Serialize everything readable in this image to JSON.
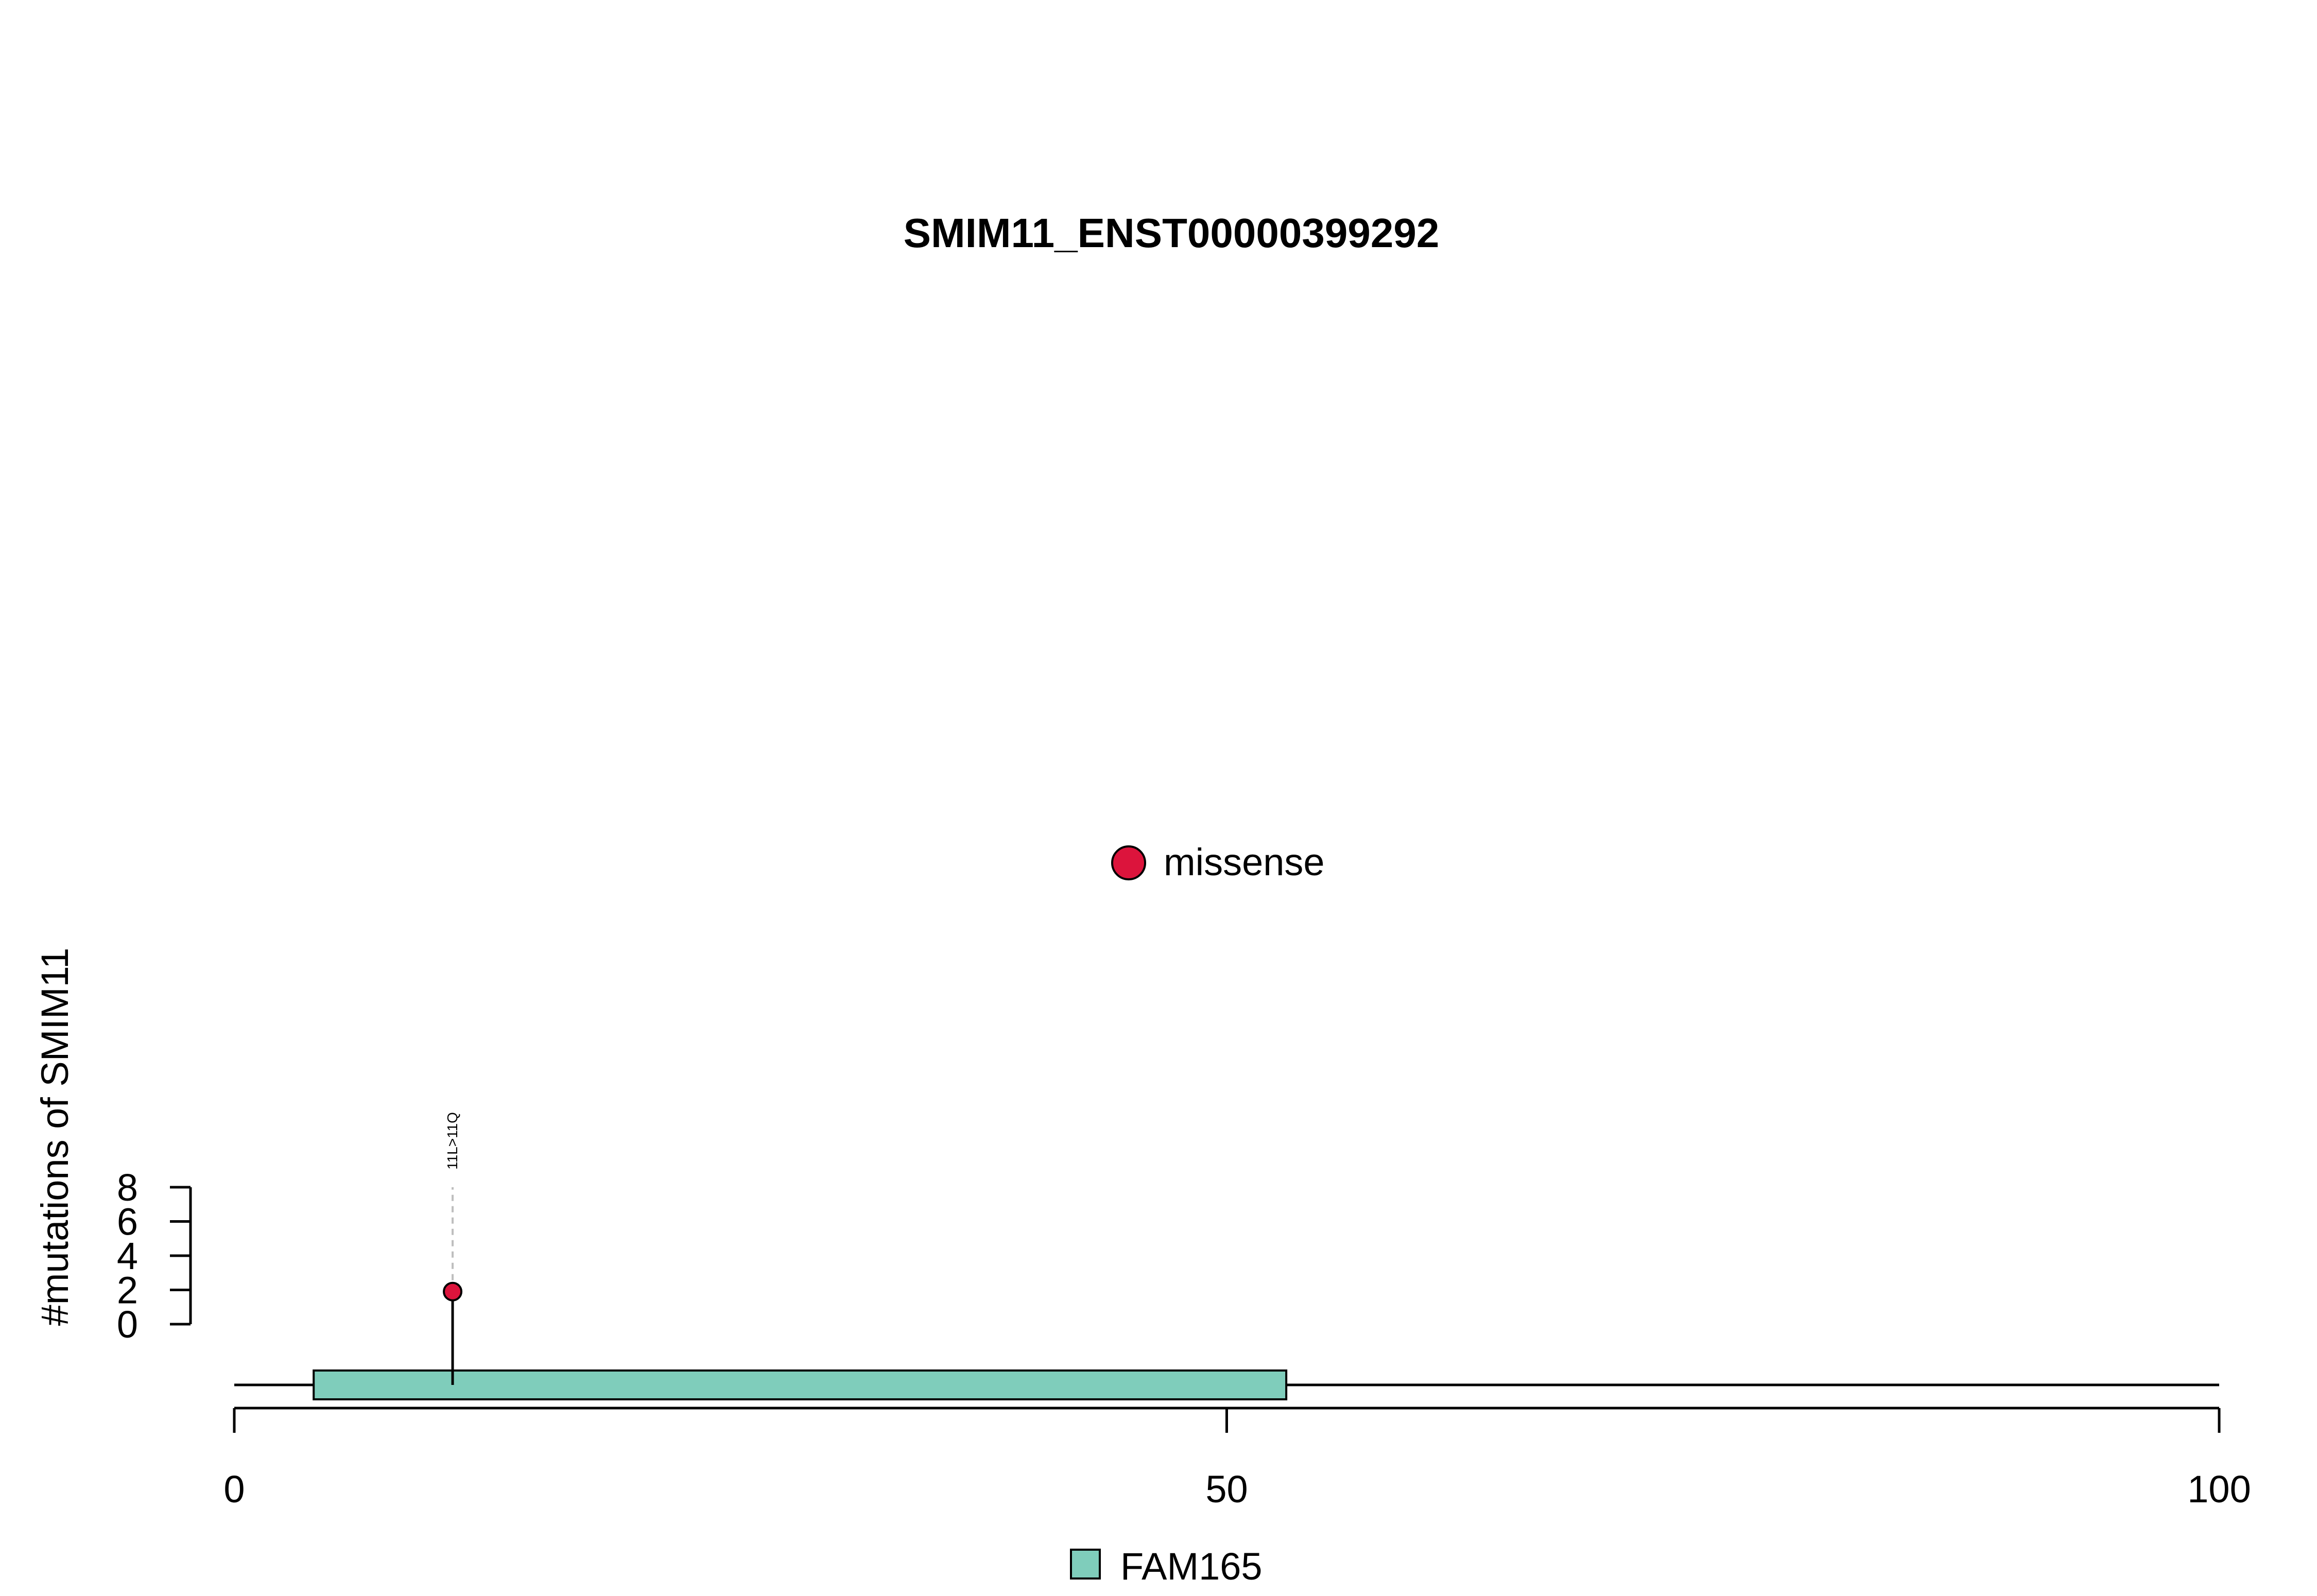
{
  "chart_data": {
    "type": "lollipop",
    "title": "SMIM11_ENST00000399292",
    "ylabel": "#mutations of SMIM11",
    "xlim": [
      0,
      100
    ],
    "x_ticks": [
      0,
      50,
      100
    ],
    "x_tick_labels": [
      "0",
      "50",
      "100"
    ],
    "ylim": [
      0,
      8
    ],
    "y_ticks": [
      0,
      2,
      4,
      6,
      8
    ],
    "y_tick_labels": [
      "0",
      "2",
      "4",
      "6",
      "8"
    ],
    "protein_length": 100,
    "mutations": [
      {
        "label": "11L>11Q",
        "position": 11,
        "count": 1,
        "type": "missense"
      }
    ],
    "domains": [
      {
        "name": "FAM165",
        "start": 4,
        "end": 53
      }
    ],
    "mutation_legend": [
      {
        "label": "missense",
        "color": "#dc143c"
      }
    ],
    "domain_legend": [
      {
        "label": "FAM165",
        "color": "#7fcdbb"
      }
    ]
  },
  "colors": {
    "missense": "#dc143c",
    "domain": "#7fcdbb",
    "stick": "#000000",
    "guide": "#bebebe"
  }
}
